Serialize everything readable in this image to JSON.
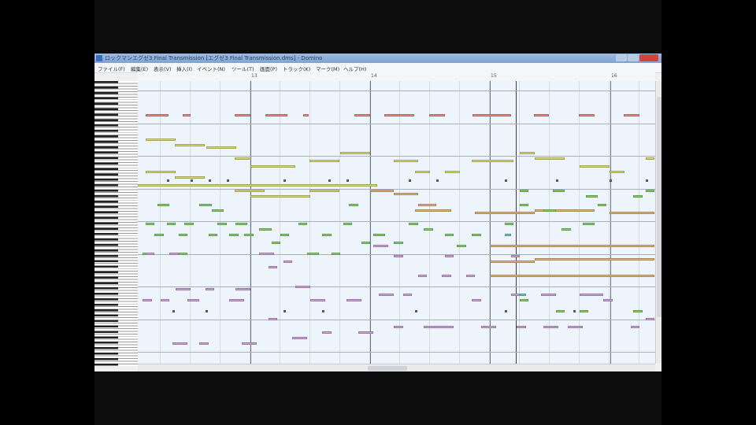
{
  "window": {
    "title": "ロックマンエグゼ3 Final Transmission [エグゼ3 Final Transmission.dms] - Domino"
  },
  "menu": [
    "ファイル(F)",
    "編集(E)",
    "表示(V)",
    "挿入(I)",
    "イベント(N)",
    "ツール(T)",
    "画面(P)",
    "トラック(K)",
    "マーク(M)",
    "ヘルプ(H)"
  ],
  "ruler": {
    "bars": [
      "13",
      "14",
      "15",
      "16"
    ]
  },
  "colors": {
    "red": "#e98a84",
    "yellow": "#d8dd6c",
    "tan": "#e2b57a",
    "green": "#86d068",
    "purple": "#cfa2d8",
    "teal": "#6cc8c0",
    "dark": "#707070"
  },
  "notes": {
    "unit": "beats from start of visible measure; row = semitones below top",
    "red": [
      [
        0.5,
        0.75,
        12
      ],
      [
        1.74,
        0.26,
        12
      ],
      [
        3.47,
        0.53,
        12
      ],
      [
        4.5,
        0.74,
        12
      ],
      [
        5.76,
        0.2,
        12
      ],
      [
        7.47,
        0.53,
        12
      ],
      [
        8.47,
        1,
        12
      ],
      [
        9.97,
        0.53,
        12
      ],
      [
        11.42,
        1.3,
        12
      ],
      [
        13.47,
        0.5,
        12
      ],
      [
        14.97,
        0.53,
        12
      ],
      [
        16.47,
        0.53,
        12
      ]
    ],
    "yellow": [
      [
        0.5,
        1,
        21
      ],
      [
        1.47,
        1,
        23
      ],
      [
        2.53,
        1,
        24
      ],
      [
        3.47,
        0.5,
        28
      ],
      [
        4,
        1.5,
        31
      ],
      [
        5.97,
        1,
        29
      ],
      [
        7,
        1,
        26
      ],
      [
        8.8,
        0.8,
        29
      ],
      [
        9.5,
        0.5,
        33
      ],
      [
        10.5,
        0.5,
        33
      ],
      [
        11.4,
        1.4,
        29
      ],
      [
        13,
        0.5,
        26
      ],
      [
        13.5,
        1,
        28
      ],
      [
        15,
        1,
        31
      ],
      [
        16,
        0.5,
        33
      ],
      [
        17.2,
        0.3,
        28
      ],
      [
        0.5,
        1,
        33
      ],
      [
        1.47,
        1,
        35
      ],
      [
        0.24,
        8,
        38
      ],
      [
        3.47,
        1,
        40
      ],
      [
        4,
        2,
        42
      ],
      [
        5.97,
        1,
        40
      ]
    ],
    "tan": [
      [
        8,
        0.8,
        40
      ],
      [
        8.8,
        0.8,
        41
      ],
      [
        9.6,
        0.6,
        45
      ],
      [
        11.5,
        2,
        48
      ],
      [
        13.5,
        2,
        47
      ],
      [
        16,
        1.5,
        48
      ],
      [
        12,
        5.5,
        60
      ],
      [
        12,
        1.5,
        66
      ],
      [
        13.5,
        4,
        65
      ],
      [
        12,
        5.5,
        71
      ],
      [
        9.5,
        1.2,
        47
      ]
    ],
    "green": [
      [
        0.9,
        0.4,
        45
      ],
      [
        2.3,
        0.4,
        45
      ],
      [
        0.5,
        0.3,
        52
      ],
      [
        1.2,
        0.3,
        52
      ],
      [
        1.8,
        0.3,
        52
      ],
      [
        2.9,
        0.3,
        52
      ],
      [
        3.5,
        0.4,
        52
      ],
      [
        0.8,
        0.3,
        56
      ],
      [
        1.6,
        0.3,
        56
      ],
      [
        2.6,
        0.3,
        56
      ],
      [
        3.3,
        0.3,
        56
      ],
      [
        0.4,
        0.3,
        63
      ],
      [
        1.6,
        0.3,
        63
      ],
      [
        4.3,
        0.4,
        54
      ],
      [
        5,
        0.3,
        56
      ],
      [
        5.6,
        0.3,
        52
      ],
      [
        4.7,
        0.3,
        59
      ],
      [
        5.9,
        0.4,
        63
      ],
      [
        6.4,
        0.3,
        56
      ],
      [
        7.1,
        0.3,
        52
      ],
      [
        7.7,
        0.3,
        59
      ],
      [
        6.7,
        0.3,
        63
      ],
      [
        7.3,
        0.3,
        45
      ],
      [
        8.1,
        0.4,
        56
      ],
      [
        8.8,
        0.3,
        59
      ],
      [
        9.3,
        0.3,
        52
      ],
      [
        9.8,
        0.3,
        54
      ],
      [
        10.5,
        0.3,
        56
      ],
      [
        10.9,
        0.3,
        60
      ],
      [
        11.4,
        0.3,
        56
      ],
      [
        12.5,
        0.3,
        52
      ],
      [
        13,
        0.3,
        45
      ],
      [
        13.8,
        0.4,
        47
      ],
      [
        14.4,
        0.3,
        54
      ],
      [
        15.1,
        0.4,
        52
      ],
      [
        15.6,
        0.3,
        45
      ],
      [
        16.8,
        0.3,
        42
      ],
      [
        17.2,
        0.3,
        40
      ],
      [
        13,
        0.3,
        40
      ],
      [
        14.1,
        0.4,
        40
      ],
      [
        15.2,
        0.4,
        42
      ],
      [
        13,
        0.3,
        80
      ],
      [
        14.2,
        0.3,
        84
      ],
      [
        15,
        0.3,
        84
      ],
      [
        16.8,
        0.3,
        84
      ],
      [
        2.7,
        0.4,
        47
      ],
      [
        3.8,
        0.3,
        56
      ]
    ],
    "purple": [
      [
        0.4,
        0.3,
        80
      ],
      [
        1.5,
        0.5,
        76
      ],
      [
        2.5,
        0.3,
        76
      ],
      [
        3.5,
        0.5,
        76
      ],
      [
        1,
        0.3,
        80
      ],
      [
        1.9,
        0.4,
        80
      ],
      [
        3.3,
        0.5,
        80
      ],
      [
        0.5,
        0.3,
        63
      ],
      [
        1.3,
        0.3,
        63
      ],
      [
        4.3,
        0.5,
        63
      ],
      [
        5.1,
        0.3,
        66
      ],
      [
        4.6,
        0.3,
        68
      ],
      [
        5.5,
        0.5,
        75
      ],
      [
        6,
        0.5,
        80
      ],
      [
        7.2,
        0.5,
        80
      ],
      [
        8.3,
        0.5,
        78
      ],
      [
        9.1,
        0.3,
        78
      ],
      [
        11.4,
        0.3,
        80
      ],
      [
        12.7,
        0.3,
        78
      ],
      [
        13.7,
        0.5,
        78
      ],
      [
        15,
        0.8,
        78
      ],
      [
        15.8,
        0.3,
        80
      ],
      [
        4.6,
        0.3,
        87
      ],
      [
        5.4,
        0.5,
        94
      ],
      [
        1.4,
        0.5,
        96
      ],
      [
        2.3,
        0.3,
        96
      ],
      [
        3.7,
        0.5,
        96
      ],
      [
        6.4,
        0.3,
        92
      ],
      [
        7.6,
        0.5,
        92
      ],
      [
        8.8,
        0.3,
        90
      ],
      [
        9.8,
        1,
        90
      ],
      [
        11.7,
        0.5,
        90
      ],
      [
        12.9,
        0.3,
        90
      ],
      [
        13.8,
        0.5,
        90
      ],
      [
        14.6,
        0.5,
        90
      ],
      [
        16.7,
        0.3,
        90
      ],
      [
        17.2,
        0.3,
        87
      ],
      [
        9.6,
        0.3,
        71
      ],
      [
        10.4,
        0.3,
        71
      ],
      [
        11.2,
        0.3,
        71
      ],
      [
        12.7,
        0.3,
        64
      ],
      [
        8.8,
        0.3,
        64
      ],
      [
        8.1,
        0.5,
        60
      ],
      [
        10.5,
        0.3,
        64
      ]
    ],
    "teal": [
      [
        12.5,
        0.2,
        56
      ],
      [
        13,
        0.2,
        78
      ]
    ],
    "dark": [
      [
        1.2,
        0.08,
        36
      ],
      [
        2,
        0.08,
        36
      ],
      [
        2.6,
        0.08,
        36
      ],
      [
        3.2,
        0.08,
        36
      ],
      [
        5.1,
        0.08,
        36
      ],
      [
        6.6,
        0.08,
        36
      ],
      [
        7.2,
        0.08,
        36
      ],
      [
        9.3,
        0.08,
        36
      ],
      [
        10.2,
        0.08,
        36
      ],
      [
        12.5,
        0.08,
        36
      ],
      [
        14.2,
        0.08,
        36
      ],
      [
        16,
        0.08,
        36
      ],
      [
        17.2,
        0.08,
        36
      ],
      [
        1.4,
        0.08,
        84
      ],
      [
        2.5,
        0.08,
        84
      ],
      [
        5.1,
        0.08,
        84
      ],
      [
        6.4,
        0.08,
        84
      ],
      [
        9.5,
        0.08,
        84
      ],
      [
        12.5,
        0.08,
        84
      ],
      [
        14.8,
        0.08,
        84
      ]
    ]
  }
}
